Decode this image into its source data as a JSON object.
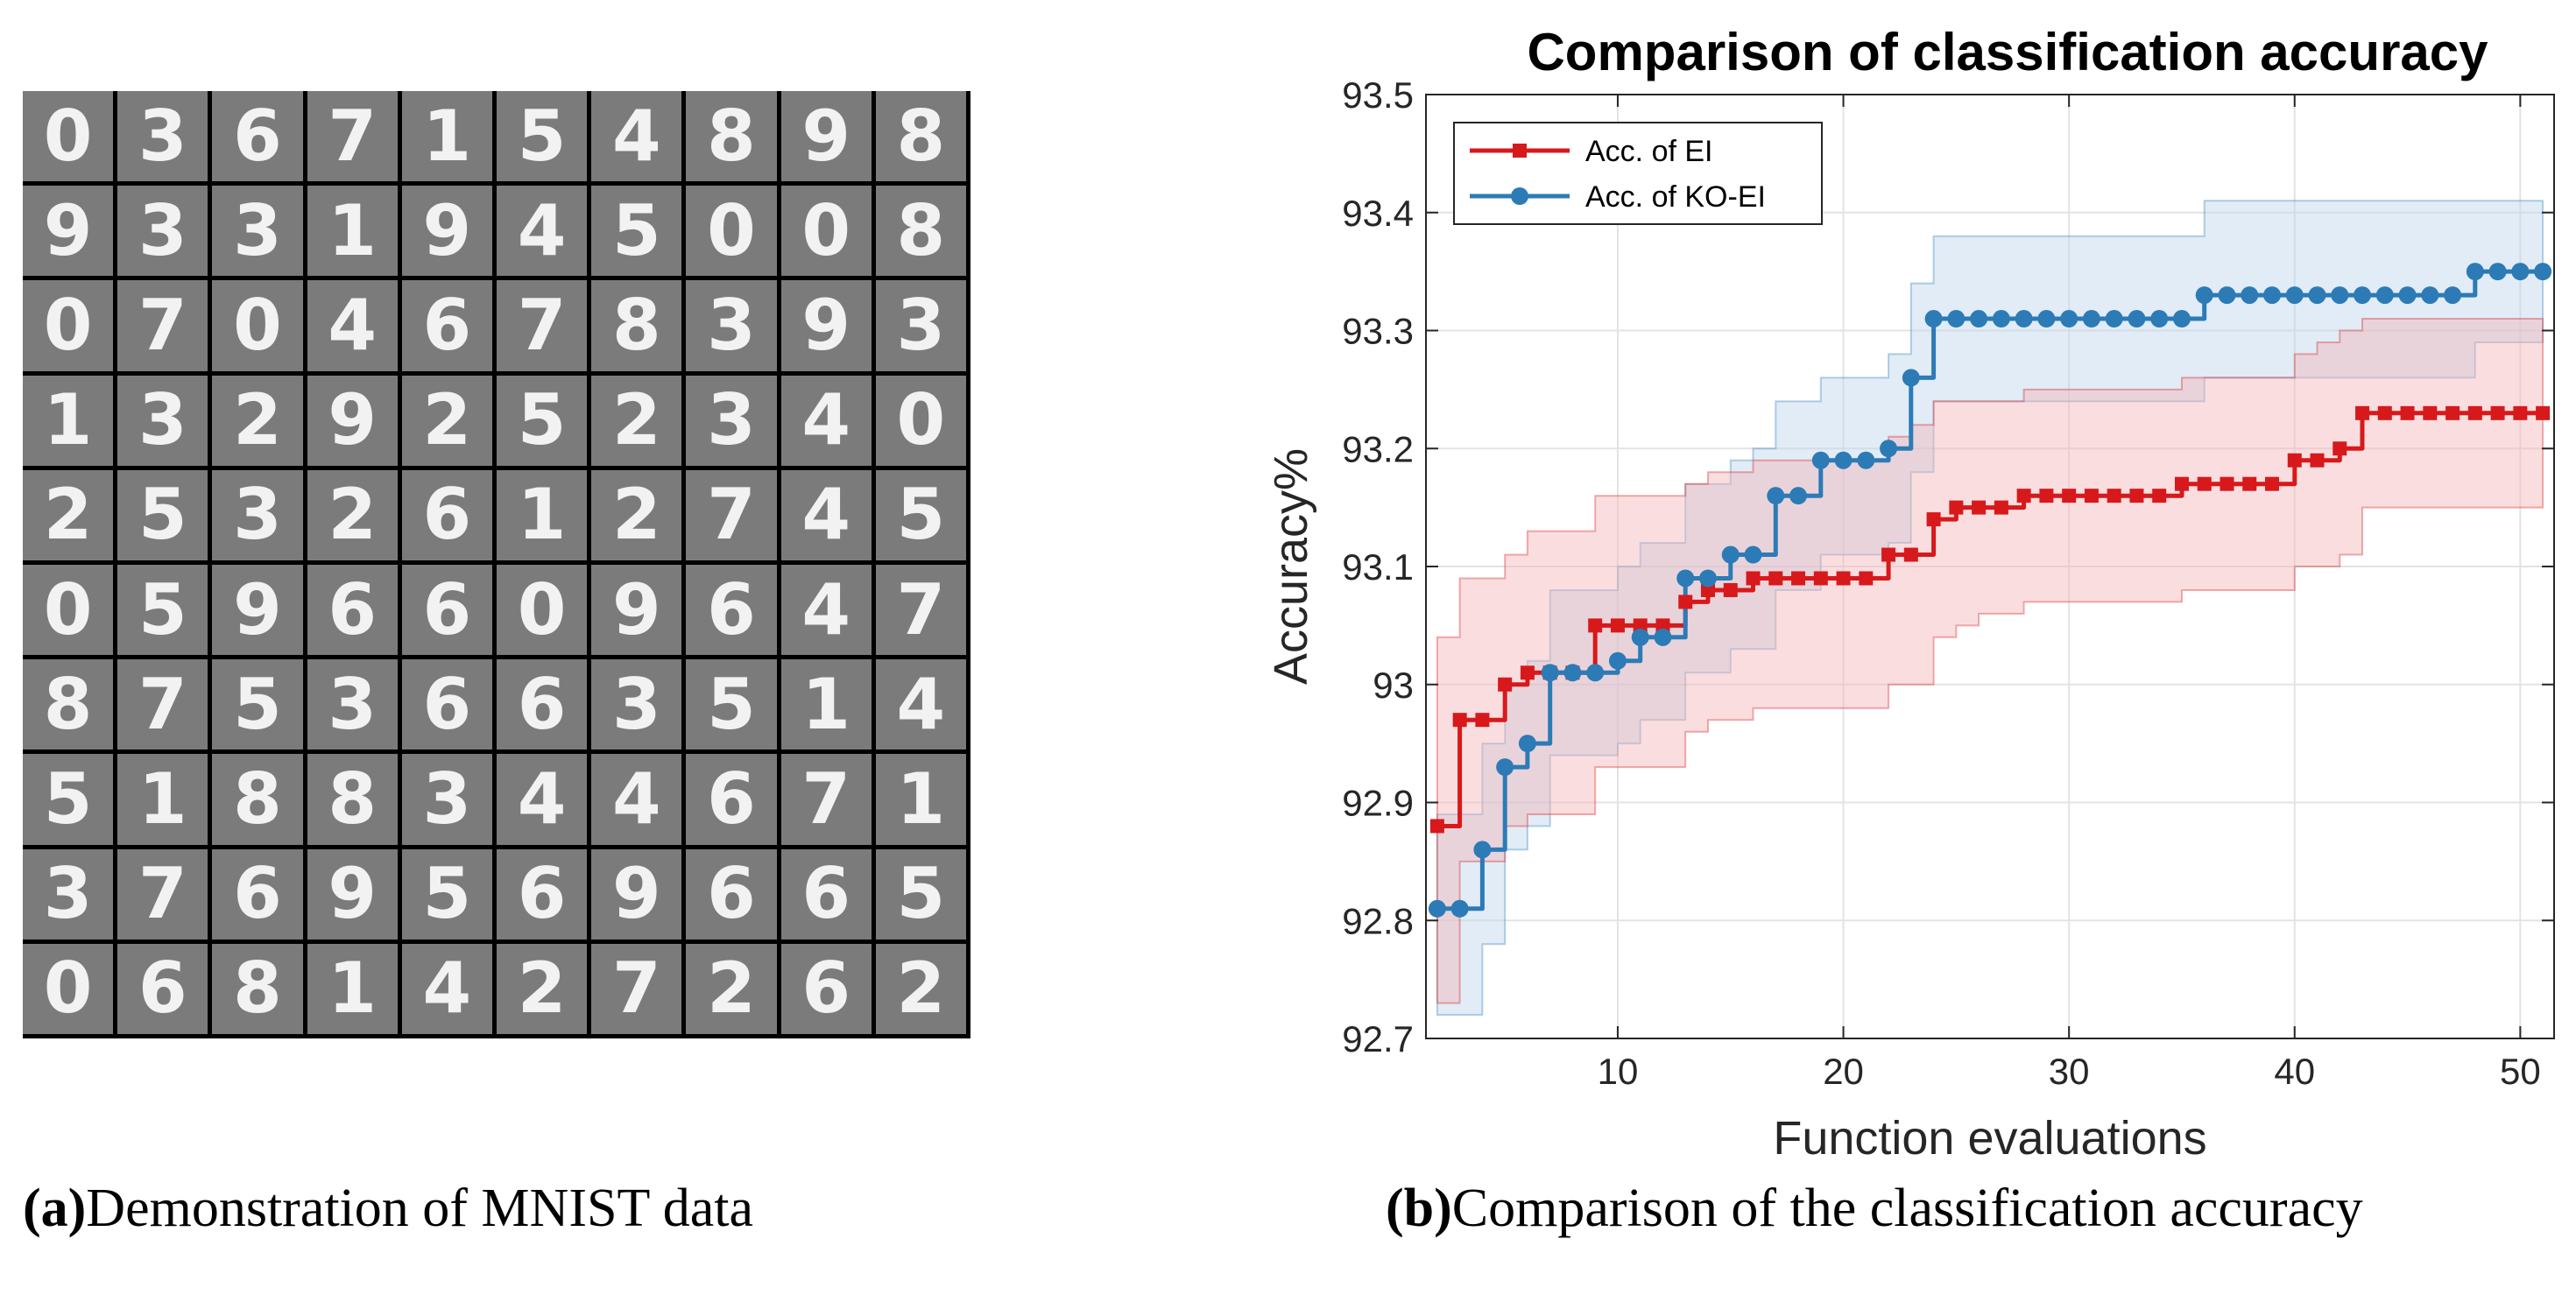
{
  "panel_a": {
    "digits": [
      [
        "0",
        "3",
        "6",
        "7",
        "1",
        "5",
        "4",
        "8",
        "9",
        "8"
      ],
      [
        "9",
        "3",
        "3",
        "1",
        "9",
        "4",
        "5",
        "0",
        "0",
        "8"
      ],
      [
        "0",
        "7",
        "0",
        "4",
        "6",
        "7",
        "8",
        "3",
        "9",
        "3"
      ],
      [
        "1",
        "3",
        "2",
        "9",
        "2",
        "5",
        "2",
        "3",
        "4",
        "0"
      ],
      [
        "2",
        "5",
        "3",
        "2",
        "6",
        "1",
        "2",
        "7",
        "4",
        "5"
      ],
      [
        "0",
        "5",
        "9",
        "6",
        "6",
        "0",
        "9",
        "6",
        "4",
        "7"
      ],
      [
        "8",
        "7",
        "5",
        "3",
        "6",
        "6",
        "3",
        "5",
        "1",
        "4"
      ],
      [
        "5",
        "1",
        "8",
        "8",
        "3",
        "4",
        "4",
        "6",
        "7",
        "1"
      ],
      [
        "3",
        "7",
        "6",
        "9",
        "5",
        "6",
        "9",
        "6",
        "6",
        "5"
      ],
      [
        "0",
        "6",
        "8",
        "1",
        "4",
        "2",
        "7",
        "2",
        "6",
        "2"
      ]
    ],
    "caption_label": "(a)",
    "caption_text": "Demonstration of MNIST data"
  },
  "panel_b": {
    "caption_label": "(b)",
    "caption_text": "Comparison of the classification accuracy"
  },
  "colors": {
    "ei": "#d7191c",
    "koei": "#2c7bb6",
    "ei_band": "#f4b6b8",
    "koei_band": "#bcd5ea",
    "grid": "#e3e3e3"
  },
  "chart_data": {
    "type": "line",
    "title": "Comparison of classification accuracy",
    "xlabel": "Function evaluations",
    "ylabel": "Accuracy%",
    "xlim": [
      1.5,
      51.5
    ],
    "ylim": [
      92.7,
      93.5
    ],
    "xticks": [
      10,
      20,
      30,
      40,
      50
    ],
    "yticks": [
      92.7,
      92.8,
      92.9,
      93,
      93.1,
      93.2,
      93.3,
      93.4,
      93.5
    ],
    "ytick_labels": [
      "92.7",
      "92.8",
      "92.9",
      "93",
      "93.1",
      "93.2",
      "93.3",
      "93.4",
      "93.5"
    ],
    "grid": true,
    "legend_position": "top-left",
    "x": [
      2,
      3,
      4,
      5,
      6,
      7,
      8,
      9,
      10,
      11,
      12,
      13,
      14,
      15,
      16,
      17,
      18,
      19,
      20,
      21,
      22,
      23,
      24,
      25,
      26,
      27,
      28,
      29,
      30,
      31,
      32,
      33,
      34,
      35,
      36,
      37,
      38,
      39,
      40,
      41,
      42,
      43,
      44,
      45,
      46,
      47,
      48,
      49,
      50,
      51
    ],
    "series": [
      {
        "name": "Acc. of EI",
        "marker": "square",
        "values": [
          92.88,
          92.97,
          92.97,
          93.0,
          93.01,
          93.01,
          93.01,
          93.05,
          93.05,
          93.05,
          93.05,
          93.07,
          93.08,
          93.08,
          93.09,
          93.09,
          93.09,
          93.09,
          93.09,
          93.09,
          93.11,
          93.11,
          93.14,
          93.15,
          93.15,
          93.15,
          93.16,
          93.16,
          93.16,
          93.16,
          93.16,
          93.16,
          93.16,
          93.17,
          93.17,
          93.17,
          93.17,
          93.17,
          93.19,
          93.19,
          93.2,
          93.23,
          93.23,
          93.23,
          93.23,
          93.23,
          93.23,
          93.23,
          93.23,
          93.23
        ],
        "band_upper": [
          93.04,
          93.09,
          93.09,
          93.11,
          93.13,
          93.13,
          93.13,
          93.16,
          93.16,
          93.16,
          93.16,
          93.17,
          93.18,
          93.18,
          93.19,
          93.19,
          93.19,
          93.19,
          93.19,
          93.19,
          93.21,
          93.22,
          93.24,
          93.24,
          93.24,
          93.24,
          93.25,
          93.25,
          93.25,
          93.25,
          93.25,
          93.25,
          93.25,
          93.26,
          93.26,
          93.26,
          93.26,
          93.26,
          93.28,
          93.29,
          93.3,
          93.31,
          93.31,
          93.31,
          93.31,
          93.31,
          93.31,
          93.31,
          93.31,
          93.31
        ],
        "band_lower": [
          92.73,
          92.85,
          92.85,
          92.88,
          92.89,
          92.89,
          92.89,
          92.93,
          92.93,
          92.93,
          92.93,
          92.96,
          92.97,
          92.97,
          92.98,
          92.98,
          92.98,
          92.98,
          92.98,
          92.98,
          93.0,
          93.0,
          93.04,
          93.05,
          93.06,
          93.06,
          93.07,
          93.07,
          93.07,
          93.07,
          93.07,
          93.07,
          93.07,
          93.08,
          93.08,
          93.08,
          93.08,
          93.08,
          93.1,
          93.1,
          93.11,
          93.15,
          93.15,
          93.15,
          93.15,
          93.15,
          93.15,
          93.15,
          93.15,
          93.15
        ]
      },
      {
        "name": "Acc. of KO-EI",
        "marker": "circle",
        "values": [
          92.81,
          92.81,
          92.86,
          92.93,
          92.95,
          93.01,
          93.01,
          93.01,
          93.02,
          93.04,
          93.04,
          93.09,
          93.09,
          93.11,
          93.11,
          93.16,
          93.16,
          93.19,
          93.19,
          93.19,
          93.2,
          93.26,
          93.31,
          93.31,
          93.31,
          93.31,
          93.31,
          93.31,
          93.31,
          93.31,
          93.31,
          93.31,
          93.31,
          93.31,
          93.33,
          93.33,
          93.33,
          93.33,
          93.33,
          93.33,
          93.33,
          93.33,
          93.33,
          93.33,
          93.33,
          93.33,
          93.35,
          93.35,
          93.35,
          93.35
        ],
        "band_upper": [
          92.89,
          92.89,
          92.95,
          93.0,
          93.02,
          93.08,
          93.08,
          93.08,
          93.1,
          93.12,
          93.12,
          93.17,
          93.17,
          93.19,
          93.2,
          93.24,
          93.24,
          93.26,
          93.26,
          93.26,
          93.28,
          93.34,
          93.38,
          93.38,
          93.38,
          93.38,
          93.38,
          93.38,
          93.38,
          93.38,
          93.38,
          93.38,
          93.38,
          93.38,
          93.41,
          93.41,
          93.41,
          93.41,
          93.41,
          93.41,
          93.41,
          93.41,
          93.41,
          93.41,
          93.41,
          93.41,
          93.41,
          93.41,
          93.41,
          93.41
        ],
        "band_lower": [
          92.72,
          92.72,
          92.78,
          92.86,
          92.88,
          92.94,
          92.94,
          92.94,
          92.95,
          92.97,
          92.97,
          93.01,
          93.01,
          93.03,
          93.03,
          93.08,
          93.08,
          93.11,
          93.11,
          93.11,
          93.12,
          93.18,
          93.24,
          93.24,
          93.24,
          93.24,
          93.24,
          93.24,
          93.24,
          93.24,
          93.24,
          93.24,
          93.24,
          93.24,
          93.26,
          93.26,
          93.26,
          93.26,
          93.26,
          93.26,
          93.26,
          93.26,
          93.26,
          93.26,
          93.26,
          93.26,
          93.29,
          93.29,
          93.29,
          93.29
        ]
      }
    ]
  }
}
